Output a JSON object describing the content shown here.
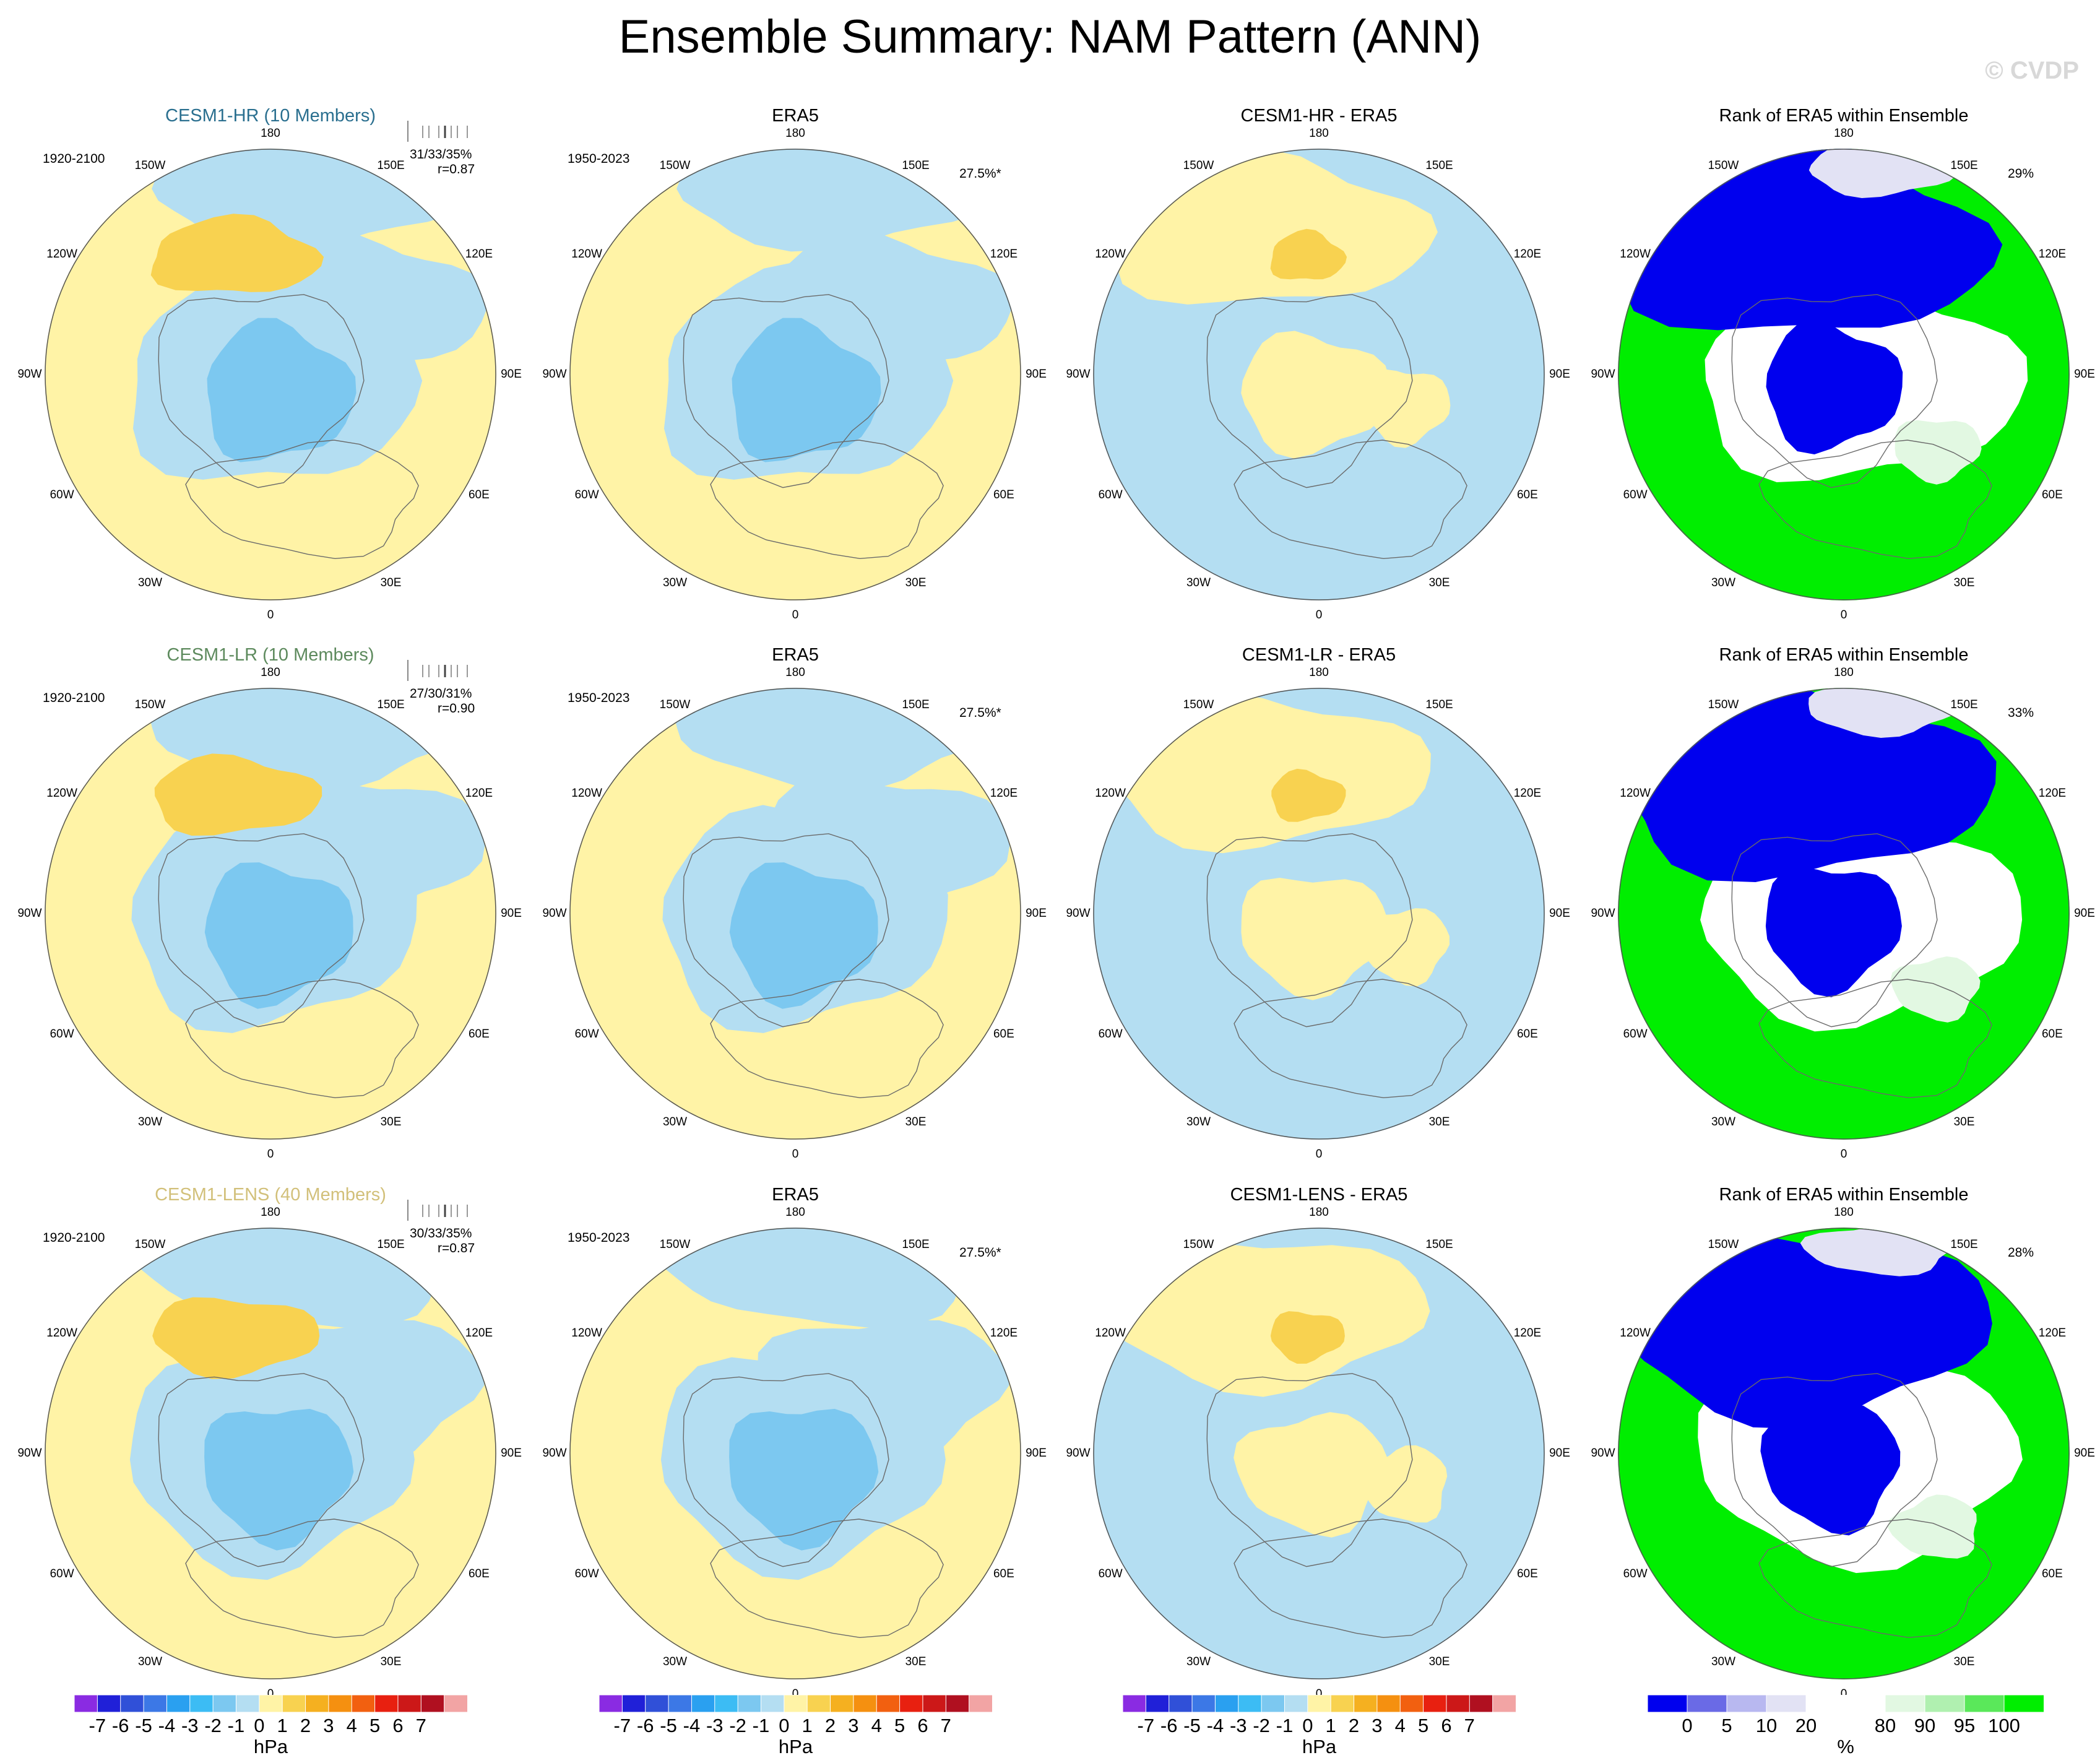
{
  "title": "Ensemble Summary: NAM Pattern (ANN)",
  "watermark": "© CVDP",
  "lon_labels": [
    "180",
    "150E",
    "120E",
    "90E",
    "60E",
    "30E",
    "0",
    "30W",
    "60W",
    "90W",
    "120W",
    "150W"
  ],
  "panels": [
    {
      "title": "CESM1-HR (10 Members)",
      "title_color": "#2a6f8f",
      "period": "1920-2100",
      "stats1": "31/33/35%",
      "stats2": "r=0.87",
      "kind": "model"
    },
    {
      "title": "ERA5",
      "period": "1950-2023",
      "pct": "27.5%*",
      "kind": "obs"
    },
    {
      "title": "CESM1-HR - ERA5",
      "kind": "diff"
    },
    {
      "title": "Rank of ERA5 within Ensemble",
      "pct": "29%",
      "kind": "rank"
    },
    {
      "title": "CESM1-LR (10 Members)",
      "title_color": "#5d8a5d",
      "period": "1920-2100",
      "stats1": "27/30/31%",
      "stats2": "r=0.90",
      "kind": "model"
    },
    {
      "title": "ERA5",
      "period": "1950-2023",
      "pct": "27.5%*",
      "kind": "obs"
    },
    {
      "title": "CESM1-LR - ERA5",
      "kind": "diff"
    },
    {
      "title": "Rank of ERA5 within Ensemble",
      "pct": "33%",
      "kind": "rank"
    },
    {
      "title": "CESM1-LENS (40 Members)",
      "title_color": "#d2c07a",
      "period": "1920-2100",
      "stats1": "30/33/35%",
      "stats2": "r=0.87",
      "kind": "model"
    },
    {
      "title": "ERA5",
      "period": "1950-2023",
      "pct": "27.5%*",
      "kind": "obs"
    },
    {
      "title": "CESM1-LENS - ERA5",
      "kind": "diff"
    },
    {
      "title": "Rank of ERA5 within Ensemble",
      "pct": "28%",
      "kind": "rank"
    }
  ],
  "colorbar_hpa": {
    "colors": [
      "#8a2be2",
      "#2020d8",
      "#3050d8",
      "#3c78e6",
      "#2aa0f0",
      "#3cbcf4",
      "#7cc8f0",
      "#b4def2",
      "#fff3a6",
      "#f8d250",
      "#f5b020",
      "#f59010",
      "#f26010",
      "#e82010",
      "#cc1818",
      "#b01020",
      "#f2a4a4"
    ],
    "labels": [
      "-7",
      "-6",
      "-5",
      "-4",
      "-3",
      "-2",
      "-1",
      "0",
      "1",
      "2",
      "3",
      "4",
      "5",
      "6",
      "7"
    ],
    "unit": "hPa"
  },
  "colorbar_rank": {
    "colors": [
      "#0000ee",
      "#6a6ae6",
      "#b8b8f0",
      "#e2e2f4",
      "#ffffff",
      "#ffffff",
      "#e2f8e2",
      "#b0f0b0",
      "#5ae85a",
      "#00ee00"
    ],
    "labels": [
      "0",
      "5",
      "10",
      "20",
      "80",
      "90",
      "95",
      "100"
    ],
    "unit": "%"
  },
  "chart_data": {
    "type": "heatmap",
    "title": "Ensemble Summary: NAM Pattern (ANN)",
    "units": "hPa",
    "contour_levels": [
      -7,
      -6,
      -5,
      -4,
      -3,
      -2,
      -1,
      0,
      1,
      2,
      3,
      4,
      5,
      6,
      7
    ],
    "rank_levels": [
      0,
      5,
      10,
      20,
      80,
      90,
      95,
      100
    ],
    "panels": [
      {
        "title": "CESM1-HR (10 Members)",
        "ensemble_pct": "31/33/35%",
        "pattern_corr": 0.87
      },
      {
        "title": "ERA5",
        "period": "1950-2023",
        "pct_variance": "27.5%*"
      },
      {
        "title": "CESM1-HR - ERA5"
      },
      {
        "title": "Rank of ERA5 within Ensemble",
        "pct": "29%"
      },
      {
        "title": "CESM1-LR (10 Members)",
        "ensemble_pct": "27/30/31%",
        "pattern_corr": 0.9
      },
      {
        "title": "ERA5",
        "period": "1950-2023",
        "pct_variance": "27.5%*"
      },
      {
        "title": "CESM1-LR - ERA5"
      },
      {
        "title": "Rank of ERA5 within Ensemble",
        "pct": "33%"
      },
      {
        "title": "CESM1-LENS (40 Members)",
        "ensemble_pct": "30/33/35%",
        "pattern_corr": 0.87
      },
      {
        "title": "ERA5",
        "period": "1950-2023",
        "pct_variance": "27.5%*"
      },
      {
        "title": "CESM1-LENS - ERA5"
      },
      {
        "title": "Rank of ERA5 within Ensemble",
        "pct": "28%"
      }
    ]
  }
}
